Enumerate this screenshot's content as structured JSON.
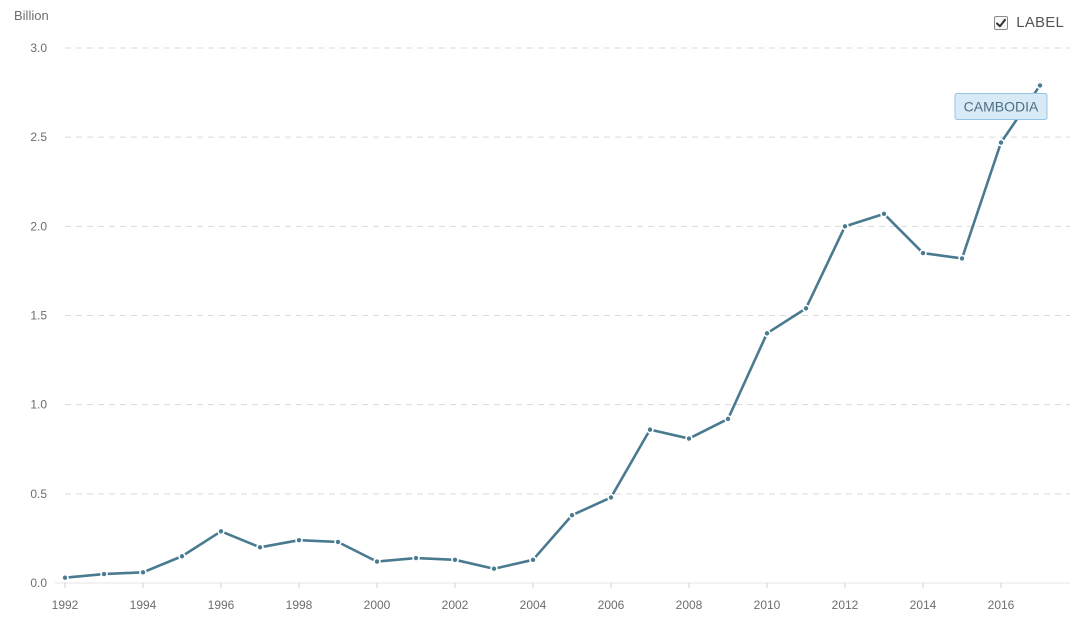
{
  "unit_label": "Billion",
  "legend_toggle": {
    "label": "LABEL",
    "checked": true
  },
  "colors": {
    "line": "#4a7a8f",
    "grid": "#d9d9d9",
    "axis": "#e5e5e5",
    "label_bg": "#d7eaf6",
    "label_border": "#97c4e2",
    "label_text": "#4f6f86"
  },
  "chart_data": {
    "type": "line",
    "x": [
      1992,
      1993,
      1994,
      1995,
      1996,
      1997,
      1998,
      1999,
      2000,
      2001,
      2002,
      2003,
      2004,
      2005,
      2006,
      2007,
      2008,
      2009,
      2010,
      2011,
      2012,
      2013,
      2014,
      2015,
      2016,
      2017
    ],
    "series": [
      {
        "name": "CAMBODIA",
        "values": [
          0.03,
          0.05,
          0.06,
          0.15,
          0.29,
          0.2,
          0.24,
          0.23,
          0.12,
          0.14,
          0.13,
          0.08,
          0.13,
          0.38,
          0.48,
          0.86,
          0.81,
          0.92,
          1.4,
          1.54,
          2.0,
          2.07,
          1.85,
          1.82,
          2.47,
          2.79
        ]
      }
    ],
    "xlim": [
      1992,
      2017
    ],
    "ylim": [
      0,
      3.0
    ],
    "y_ticks": [
      "0.0",
      "0.5",
      "1.0",
      "1.5",
      "2.0",
      "2.5",
      "3.0"
    ],
    "x_ticks": [
      "1992",
      "1994",
      "1996",
      "1998",
      "2000",
      "2002",
      "2004",
      "2006",
      "2008",
      "2010",
      "2012",
      "2014",
      "2016"
    ],
    "grid": true,
    "legend": "series label near last point",
    "title": "",
    "xlabel": "",
    "ylabel": "Billion"
  }
}
